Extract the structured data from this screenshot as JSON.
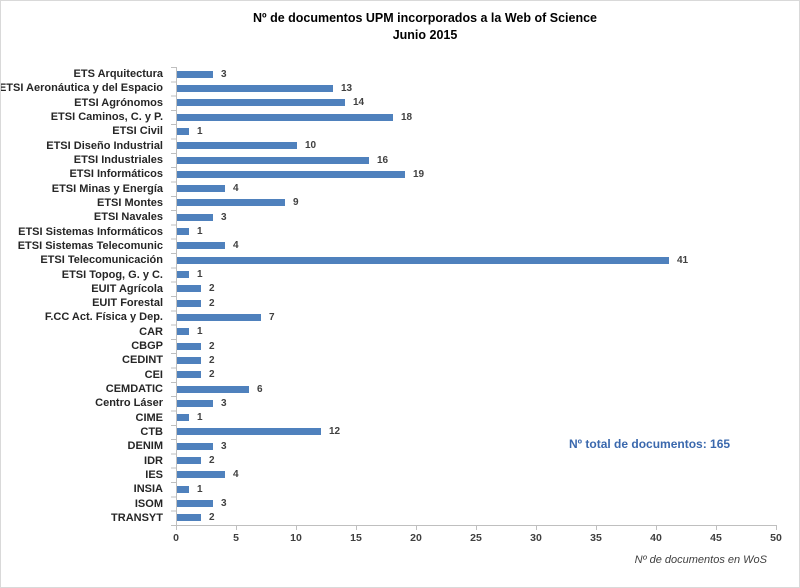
{
  "chart_data": {
    "type": "bar",
    "orientation": "horizontal",
    "title": "Nº de documentos UPM incorporados a la Web of Science",
    "subtitle": "Junio 2015",
    "categories": [
      "ETS Arquitectura",
      "ETSI Aeronáutica y del Espacio",
      "ETSI Agrónomos",
      "ETSI Caminos, C. y P.",
      "ETSI Civil",
      "ETSI Diseño Industrial",
      "ETSI Industriales",
      "ETSI Informáticos",
      "ETSI Minas y Energía",
      "ETSI Montes",
      "ETSI Navales",
      "ETSI Sistemas Informáticos",
      "ETSI Sistemas Telecomunic",
      "ETSI Telecomunicación",
      "ETSI Topog, G. y C.",
      "EUIT Agrícola",
      "EUIT Forestal",
      "F.CC Act. Física y Dep.",
      "CAR",
      "CBGP",
      "CEDINT",
      "CEI",
      "CEMDATIC",
      "Centro Láser",
      "CIME",
      "CTB",
      "DENIM",
      "IDR",
      "IES",
      "INSIA",
      "ISOM",
      "TRANSYT"
    ],
    "values": [
      3,
      13,
      14,
      18,
      1,
      10,
      16,
      19,
      4,
      9,
      3,
      1,
      4,
      41,
      1,
      2,
      2,
      7,
      1,
      2,
      2,
      2,
      6,
      3,
      1,
      12,
      3,
      2,
      4,
      1,
      3,
      2
    ],
    "xlabel": "Nº de documentos en WoS",
    "xlim": [
      0,
      50
    ],
    "xticks": [
      0,
      5,
      10,
      15,
      20,
      25,
      30,
      35,
      40,
      45,
      50
    ],
    "grid": false,
    "legend": false,
    "bar_color": "#4F81BD",
    "annotation": "Nº total de documentos: 165",
    "annotation_color": "#3A68AD"
  }
}
